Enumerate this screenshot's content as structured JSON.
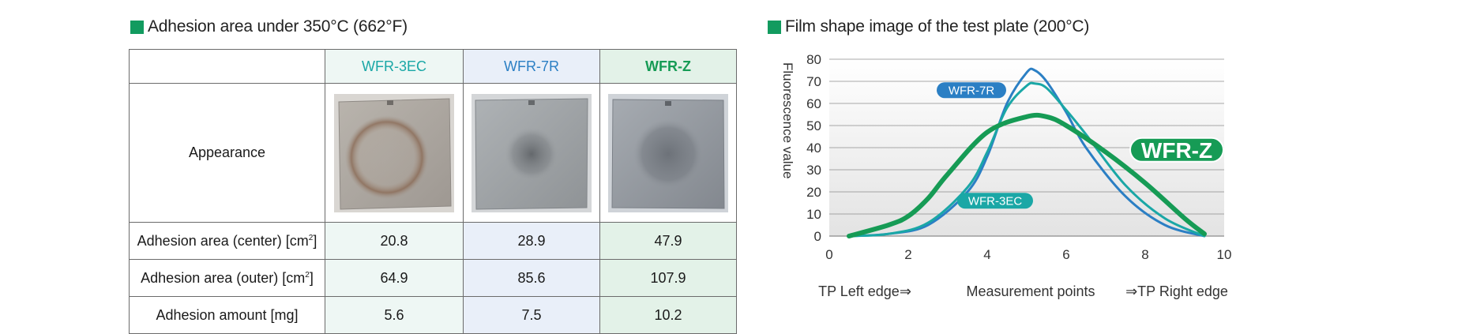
{
  "left_section": {
    "title": "Adhesion area under 350°C (662°F)",
    "marker_color": "#129b5f"
  },
  "table": {
    "columns": [
      "WFR-3EC",
      "WFR-7R",
      "WFR-Z"
    ],
    "column_colors": [
      "#1aa7a6",
      "#2b7fc4",
      "#169b55"
    ],
    "appearance_label": "Appearance",
    "rows": [
      {
        "label": "Adhesion area (center) [cm",
        "sup": "2",
        "label_end": "]",
        "values": [
          "20.8",
          "28.9",
          "47.9"
        ]
      },
      {
        "label": "Adhesion area (outer) [cm",
        "sup": "2",
        "label_end": "]",
        "values": [
          "64.9",
          "85.6",
          "107.9"
        ]
      },
      {
        "label": "Adhesion amount [mg]",
        "sup": "",
        "label_end": "",
        "values": [
          "5.6",
          "7.5",
          "10.2"
        ]
      }
    ]
  },
  "right_section": {
    "title": "Film shape image of the test plate (200°C)",
    "marker_color": "#129b5f"
  },
  "chart_data": {
    "type": "line",
    "title": "Film shape image of the test plate (200°C)",
    "ylabel": "Fluorescence value",
    "xlabel": "Measurement points",
    "x_left_note": "TP Left edge⇒",
    "x_right_note": "⇒TP Right edge",
    "xlim": [
      0,
      10
    ],
    "ylim": [
      0,
      80
    ],
    "x_ticks": [
      0,
      2,
      4,
      6,
      8,
      10
    ],
    "y_ticks": [
      0,
      10,
      20,
      30,
      40,
      50,
      60,
      70,
      80
    ],
    "grid": true,
    "series": [
      {
        "name": "WFR-7R",
        "color": "#2b7fc4",
        "style": "label",
        "x": [
          0.5,
          1.5,
          2.5,
          3.5,
          4.0,
          4.5,
          5.0,
          5.2,
          5.5,
          6.0,
          6.5,
          7.5,
          8.5,
          9.5
        ],
        "y": [
          0,
          1,
          5,
          20,
          36,
          60,
          74,
          75,
          70,
          56,
          40,
          18,
          5,
          0
        ]
      },
      {
        "name": "WFR-3EC",
        "color": "#1aa7a6",
        "style": "label",
        "x": [
          0.5,
          1.5,
          2.5,
          3.5,
          4.0,
          4.5,
          5.0,
          5.2,
          5.5,
          6.0,
          6.5,
          7.5,
          8.5,
          9.5
        ],
        "y": [
          0,
          1,
          6,
          22,
          38,
          58,
          68,
          69,
          67,
          57,
          46,
          23,
          8,
          0
        ]
      },
      {
        "name": "WFR-Z",
        "color": "#169b55",
        "style": "badge",
        "x": [
          0.5,
          1.5,
          2.0,
          2.5,
          3.0,
          4.0,
          5.0,
          5.5,
          6.0,
          7.0,
          8.0,
          9.0,
          9.5
        ],
        "y": [
          0,
          5,
          9,
          17,
          28,
          47,
          54,
          54,
          50,
          38,
          24,
          8,
          1
        ]
      }
    ]
  }
}
